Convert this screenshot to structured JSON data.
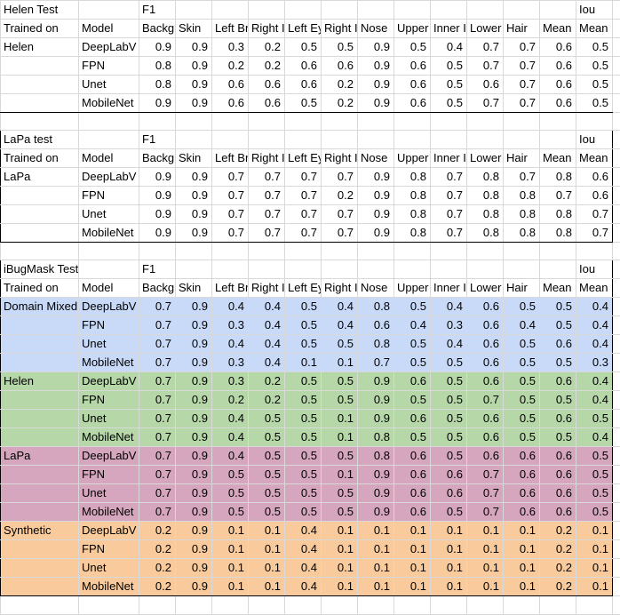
{
  "colors": {
    "domain": "#c9daf8",
    "helen": "#b6d7a8",
    "lapa": "#d5a6bd",
    "synthetic": "#f9cb9c",
    "gridline": "#d9d9d9",
    "table_border": "#000000"
  },
  "sections": [
    {
      "title": "Helen Test",
      "metric_label": "F1",
      "iou_label": "Iou",
      "header": [
        "Trained on",
        "Model",
        "Backgro",
        "Skin",
        "Left Br",
        "Right I",
        "Left Ey",
        "Right I",
        "Nose",
        "Upper",
        "Inner I",
        "Lower",
        "Hair",
        "Mean",
        "Mean"
      ],
      "groups": [
        {
          "trained_on": "Helen",
          "color_key": "",
          "rows": [
            {
              "model": "DeepLabV",
              "values": [
                "0.9",
                "0.9",
                "0.3",
                "0.2",
                "0.5",
                "0.5",
                "0.9",
                "0.5",
                "0.4",
                "0.7",
                "0.7",
                "0.6",
                "0.5"
              ]
            },
            {
              "model": "FPN",
              "values": [
                "0.8",
                "0.9",
                "0.2",
                "0.2",
                "0.6",
                "0.6",
                "0.9",
                "0.6",
                "0.5",
                "0.7",
                "0.7",
                "0.6",
                "0.5"
              ]
            },
            {
              "model": "Unet",
              "values": [
                "0.8",
                "0.9",
                "0.6",
                "0.6",
                "0.6",
                "0.2",
                "0.9",
                "0.6",
                "0.5",
                "0.6",
                "0.7",
                "0.6",
                "0.5"
              ]
            },
            {
              "model": "MobileNet",
              "values": [
                "0.9",
                "0.9",
                "0.6",
                "0.6",
                "0.5",
                "0.2",
                "0.9",
                "0.6",
                "0.5",
                "0.7",
                "0.7",
                "0.6",
                "0.5"
              ]
            }
          ]
        }
      ]
    },
    {
      "title": "LaPa test",
      "metric_label": "F1",
      "iou_label": "Iou",
      "header": [
        "Trained on",
        "Model",
        "Backgro",
        "Skin",
        "Left Br",
        "Right I",
        "Left Ey",
        "Right I",
        "Nose",
        "Upper",
        "Inner I",
        "Lower",
        "Hair",
        "Mean",
        "Mean"
      ],
      "groups": [
        {
          "trained_on": "LaPa",
          "color_key": "",
          "rows": [
            {
              "model": "DeepLabV",
              "values": [
                "0.9",
                "0.9",
                "0.7",
                "0.7",
                "0.7",
                "0.7",
                "0.9",
                "0.8",
                "0.7",
                "0.8",
                "0.7",
                "0.8",
                "0.6"
              ]
            },
            {
              "model": "FPN",
              "values": [
                "0.9",
                "0.9",
                "0.7",
                "0.7",
                "0.7",
                "0.2",
                "0.9",
                "0.8",
                "0.7",
                "0.8",
                "0.8",
                "0.7",
                "0.6"
              ]
            },
            {
              "model": "Unet",
              "values": [
                "0.9",
                "0.9",
                "0.7",
                "0.7",
                "0.7",
                "0.7",
                "0.9",
                "0.8",
                "0.7",
                "0.8",
                "0.8",
                "0.8",
                "0.7"
              ]
            },
            {
              "model": "MobileNet",
              "values": [
                "0.9",
                "0.9",
                "0.7",
                "0.7",
                "0.7",
                "0.7",
                "0.9",
                "0.8",
                "0.7",
                "0.8",
                "0.8",
                "0.8",
                "0.7"
              ]
            }
          ]
        }
      ]
    },
    {
      "title": "iBugMask Test",
      "metric_label": "F1",
      "iou_label": "Iou",
      "header": [
        "Trained on",
        "Model",
        "Backgro",
        "Skin",
        "Left Br",
        "Right I",
        "Left Ey",
        "Right I",
        "Nose",
        "Upper",
        "Inner I",
        "Lower",
        "Hair",
        "Mean",
        "Mean"
      ],
      "groups": [
        {
          "trained_on": "Domain Mixed",
          "color_key": "domain",
          "rows": [
            {
              "model": "DeepLabV",
              "values": [
                "0.7",
                "0.9",
                "0.4",
                "0.4",
                "0.5",
                "0.4",
                "0.8",
                "0.5",
                "0.4",
                "0.6",
                "0.5",
                "0.5",
                "0.4"
              ]
            },
            {
              "model": "FPN",
              "values": [
                "0.7",
                "0.9",
                "0.3",
                "0.4",
                "0.5",
                "0.4",
                "0.6",
                "0.4",
                "0.3",
                "0.6",
                "0.4",
                "0.5",
                "0.4"
              ]
            },
            {
              "model": "Unet",
              "values": [
                "0.7",
                "0.9",
                "0.4",
                "0.4",
                "0.5",
                "0.5",
                "0.8",
                "0.5",
                "0.4",
                "0.6",
                "0.5",
                "0.6",
                "0.4"
              ]
            },
            {
              "model": "MobileNet",
              "values": [
                "0.7",
                "0.9",
                "0.3",
                "0.4",
                "0.1",
                "0.1",
                "0.7",
                "0.5",
                "0.5",
                "0.6",
                "0.5",
                "0.5",
                "0.3"
              ]
            }
          ]
        },
        {
          "trained_on": "Helen",
          "color_key": "helen",
          "rows": [
            {
              "model": "DeepLabV",
              "values": [
                "0.7",
                "0.9",
                "0.3",
                "0.2",
                "0.5",
                "0.5",
                "0.9",
                "0.6",
                "0.5",
                "0.6",
                "0.5",
                "0.6",
                "0.4"
              ]
            },
            {
              "model": "FPN",
              "values": [
                "0.7",
                "0.9",
                "0.2",
                "0.2",
                "0.5",
                "0.5",
                "0.9",
                "0.5",
                "0.5",
                "0.7",
                "0.5",
                "0.5",
                "0.4"
              ]
            },
            {
              "model": "Unet",
              "values": [
                "0.7",
                "0.9",
                "0.4",
                "0.5",
                "0.5",
                "0.1",
                "0.9",
                "0.6",
                "0.5",
                "0.6",
                "0.5",
                "0.6",
                "0.5"
              ]
            },
            {
              "model": "MobileNet",
              "values": [
                "0.7",
                "0.9",
                "0.4",
                "0.5",
                "0.5",
                "0.1",
                "0.8",
                "0.5",
                "0.5",
                "0.6",
                "0.5",
                "0.5",
                "0.4"
              ]
            }
          ]
        },
        {
          "trained_on": "LaPa",
          "color_key": "lapa",
          "rows": [
            {
              "model": "DeepLabV",
              "values": [
                "0.7",
                "0.9",
                "0.4",
                "0.5",
                "0.5",
                "0.5",
                "0.8",
                "0.6",
                "0.5",
                "0.6",
                "0.6",
                "0.6",
                "0.5"
              ]
            },
            {
              "model": "FPN",
              "values": [
                "0.7",
                "0.9",
                "0.5",
                "0.5",
                "0.5",
                "0.1",
                "0.9",
                "0.6",
                "0.6",
                "0.7",
                "0.6",
                "0.6",
                "0.5"
              ]
            },
            {
              "model": "Unet",
              "values": [
                "0.7",
                "0.9",
                "0.5",
                "0.5",
                "0.5",
                "0.5",
                "0.9",
                "0.6",
                "0.6",
                "0.7",
                "0.6",
                "0.6",
                "0.5"
              ]
            },
            {
              "model": "MobileNet",
              "values": [
                "0.7",
                "0.9",
                "0.5",
                "0.5",
                "0.5",
                "0.5",
                "0.9",
                "0.6",
                "0.5",
                "0.7",
                "0.6",
                "0.6",
                "0.5"
              ]
            }
          ]
        },
        {
          "trained_on": "Synthetic",
          "color_key": "synthetic",
          "rows": [
            {
              "model": "DeepLabV",
              "values": [
                "0.2",
                "0.9",
                "0.1",
                "0.1",
                "0.4",
                "0.1",
                "0.1",
                "0.1",
                "0.1",
                "0.1",
                "0.1",
                "0.2",
                "0.1"
              ]
            },
            {
              "model": "FPN",
              "values": [
                "0.2",
                "0.9",
                "0.1",
                "0.1",
                "0.4",
                "0.1",
                "0.1",
                "0.1",
                "0.1",
                "0.1",
                "0.1",
                "0.2",
                "0.1"
              ]
            },
            {
              "model": "Unet",
              "values": [
                "0.2",
                "0.9",
                "0.1",
                "0.1",
                "0.4",
                "0.1",
                "0.1",
                "0.1",
                "0.1",
                "0.1",
                "0.1",
                "0.2",
                "0.1"
              ]
            },
            {
              "model": "MobileNet",
              "values": [
                "0.2",
                "0.9",
                "0.1",
                "0.1",
                "0.4",
                "0.1",
                "0.1",
                "0.1",
                "0.1",
                "0.1",
                "0.1",
                "0.2",
                "0.1"
              ]
            }
          ]
        }
      ]
    }
  ]
}
